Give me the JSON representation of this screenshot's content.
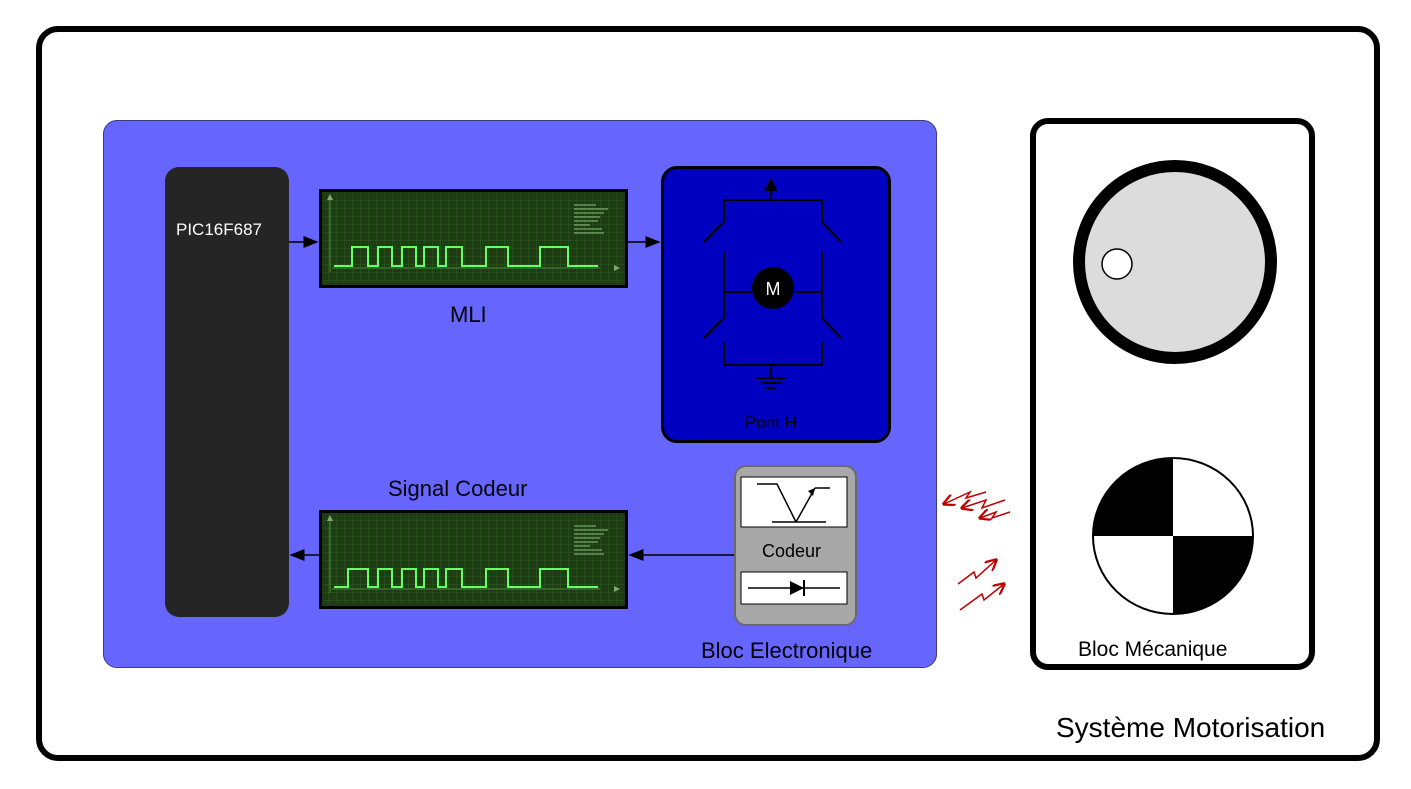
{
  "labels": {
    "pic": "PIC16F687",
    "mli": "MLI",
    "signal_codeur": "Signal Codeur",
    "pont_h": "Pont H",
    "codeur": "Codeur",
    "moteur": "M",
    "bloc_electronique": "Bloc Electronique",
    "bloc_mecanique": "Bloc Mécanique",
    "systeme": "Système Motorisation"
  },
  "colors": {
    "electronic_block": "#6666ff",
    "pic_chip": "#252525",
    "h_bridge": "#0000c0",
    "scope_screen": "#1e3d14",
    "scope_trace": "#66ff66",
    "encoder_box": "#a8a8a8",
    "ir_arrows": "#c00000",
    "wheel_fill": "#dcdcdc"
  }
}
